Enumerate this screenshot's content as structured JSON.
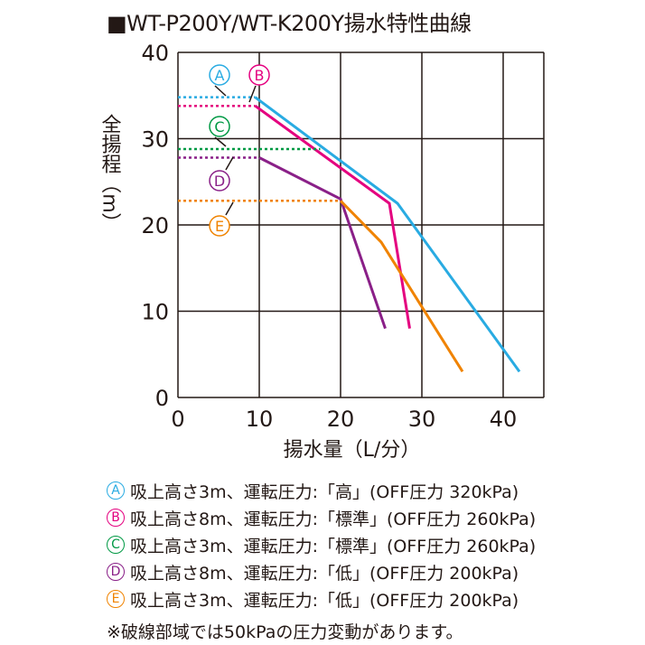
{
  "title": "■WT-P200Y/WT-K200Y揚水特性曲線",
  "chart_data": {
    "type": "line",
    "xlabel": "揚水量（L/分）",
    "ylabel": "全揚程（m）",
    "xlim": [
      0,
      45
    ],
    "ylim": [
      0,
      40
    ],
    "xticks": [
      "0",
      "10",
      "20",
      "30",
      "40"
    ],
    "yticks": [
      "0",
      "10",
      "20",
      "30",
      "40"
    ],
    "grid": true,
    "series": [
      {
        "name": "A",
        "color": "#29abe2",
        "x": [
          9.5,
          27,
          42
        ],
        "y": [
          34.8,
          22.5,
          3
        ],
        "dashed_y": 34.8
      },
      {
        "name": "B",
        "color": "#e4007f",
        "x": [
          9.5,
          26,
          28.5
        ],
        "y": [
          33.8,
          22.5,
          8
        ],
        "dashed_y": 33.8
      },
      {
        "name": "C",
        "color": "#009944",
        "x": [],
        "y": [],
        "dashed_y": 28.8
      },
      {
        "name": "D",
        "color": "#8a2088",
        "x": [
          10,
          20,
          25.5
        ],
        "y": [
          27.8,
          23,
          8
        ],
        "dashed_y": 27.8
      },
      {
        "name": "E",
        "color": "#f08300",
        "x": [
          20,
          25,
          35
        ],
        "y": [
          22.8,
          18,
          3
        ],
        "dashed_y": 22.8
      }
    ]
  },
  "legend": [
    {
      "badge": "A",
      "color": "#29abe2",
      "text": "吸上高さ3m、運転圧力:「高」(OFF圧力 320kPa)"
    },
    {
      "badge": "B",
      "color": "#e4007f",
      "text": "吸上高さ8m、運転圧力:「標準」(OFF圧力 260kPa)"
    },
    {
      "badge": "C",
      "color": "#009944",
      "text": "吸上高さ3m、運転圧力:「標準」(OFF圧力 260kPa)"
    },
    {
      "badge": "D",
      "color": "#8a2088",
      "text": "吸上高さ8m、運転圧力:「低」(OFF圧力 200kPa)"
    },
    {
      "badge": "E",
      "color": "#f08300",
      "text": "吸上高さ3m、運転圧力:「低」(OFF圧力 200kPa)"
    }
  ],
  "note": "※破線部域では50kPaの圧力変動があります。"
}
